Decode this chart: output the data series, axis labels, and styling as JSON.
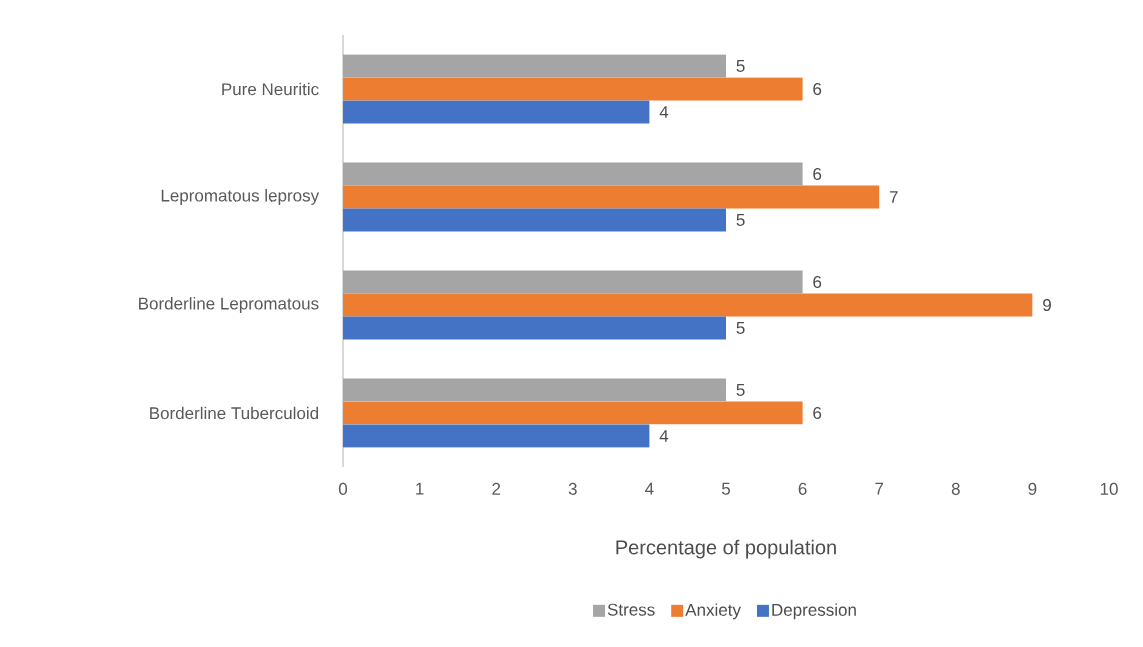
{
  "chart_data": {
    "type": "bar",
    "orientation": "horizontal",
    "categories": [
      "Pure Neuritic",
      "Lepromatous leprosy",
      "Borderline Lepromatous",
      "Borderline Tuberculoid"
    ],
    "series": [
      {
        "name": "Stress",
        "color": "#a5a5a5",
        "values": [
          5,
          6,
          6,
          5
        ]
      },
      {
        "name": "Anxiety",
        "color": "#ed7d31",
        "values": [
          6,
          7,
          9,
          6
        ]
      },
      {
        "name": "Depression",
        "color": "#4472c4",
        "values": [
          4,
          5,
          5,
          4
        ]
      }
    ],
    "xlim": [
      0,
      10
    ],
    "xticks": [
      0,
      1,
      2,
      3,
      4,
      5,
      6,
      7,
      8,
      9,
      10
    ],
    "xlabel": "Percentage of population",
    "data_labels": true,
    "legend": "bottom"
  }
}
